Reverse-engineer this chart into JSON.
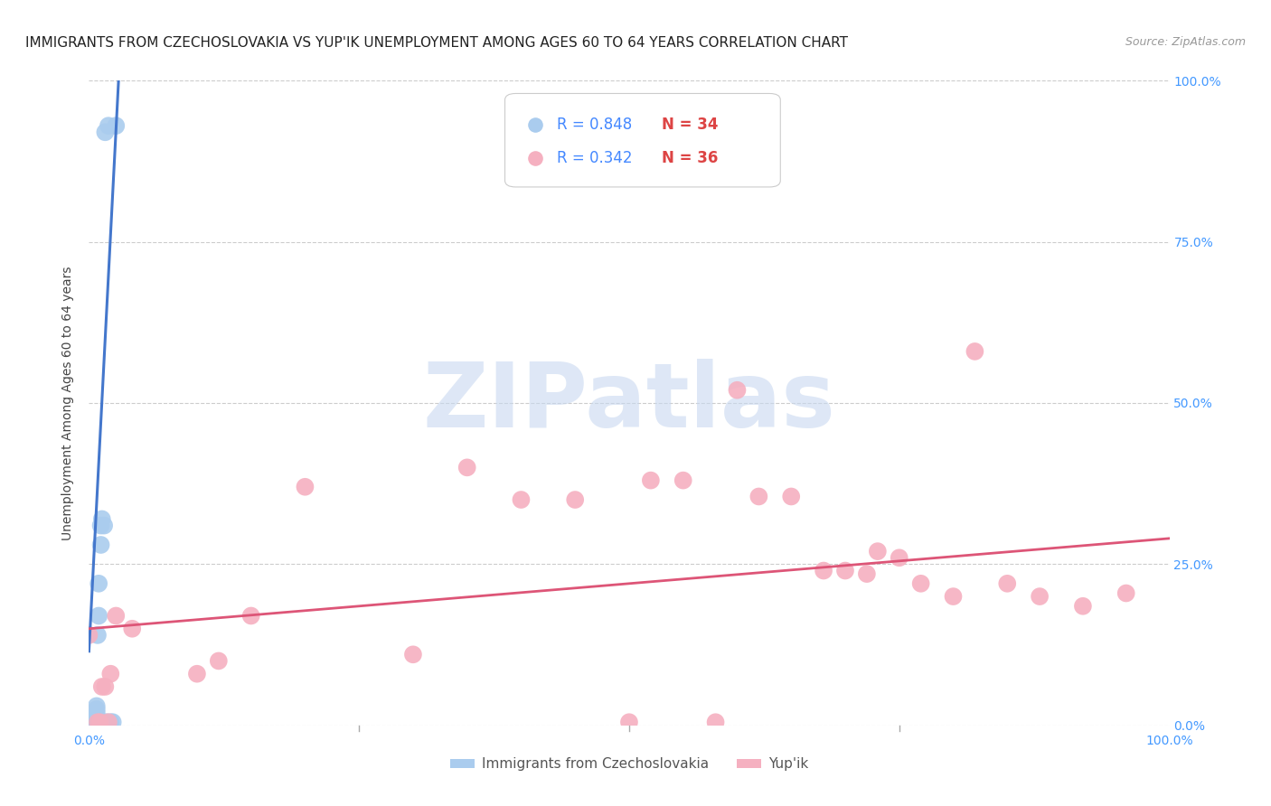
{
  "title": "IMMIGRANTS FROM CZECHOSLOVAKIA VS YUP'IK UNEMPLOYMENT AMONG AGES 60 TO 64 YEARS CORRELATION CHART",
  "source": "Source: ZipAtlas.com",
  "ylabel": "Unemployment Among Ages 60 to 64 years",
  "xlim": [
    0.0,
    1.0
  ],
  "ylim": [
    0.0,
    1.0
  ],
  "grid_color": "#cccccc",
  "background_color": "#ffffff",
  "series1": {
    "name": "Immigrants from Czechoslovakia",
    "R": "0.848",
    "N": "34",
    "color": "#aaccee",
    "line_color": "#4477cc",
    "x": [
      0.002,
      0.002,
      0.003,
      0.003,
      0.003,
      0.004,
      0.004,
      0.004,
      0.004,
      0.005,
      0.005,
      0.006,
      0.006,
      0.006,
      0.007,
      0.007,
      0.007,
      0.008,
      0.008,
      0.009,
      0.009,
      0.01,
      0.01,
      0.011,
      0.011,
      0.012,
      0.013,
      0.014,
      0.015,
      0.016,
      0.018,
      0.02,
      0.022,
      0.025
    ],
    "y": [
      0.005,
      0.005,
      0.005,
      0.005,
      0.005,
      0.005,
      0.005,
      0.01,
      0.01,
      0.005,
      0.005,
      0.005,
      0.005,
      0.005,
      0.02,
      0.025,
      0.03,
      0.005,
      0.14,
      0.17,
      0.22,
      0.005,
      0.005,
      0.28,
      0.31,
      0.32,
      0.005,
      0.31,
      0.92,
      0.005,
      0.93,
      0.005,
      0.005,
      0.93
    ],
    "trendline_x": [
      0.0,
      0.028
    ],
    "trendline_y": [
      0.115,
      1.02
    ]
  },
  "series2": {
    "name": "Yup'ik",
    "R": "0.342",
    "N": "36",
    "color": "#f5b0c0",
    "line_color": "#dd5577",
    "x": [
      0.0,
      0.008,
      0.01,
      0.012,
      0.015,
      0.018,
      0.02,
      0.025,
      0.04,
      0.1,
      0.12,
      0.15,
      0.2,
      0.3,
      0.35,
      0.4,
      0.45,
      0.5,
      0.52,
      0.55,
      0.58,
      0.6,
      0.62,
      0.65,
      0.68,
      0.7,
      0.72,
      0.73,
      0.75,
      0.77,
      0.8,
      0.82,
      0.85,
      0.88,
      0.92,
      0.96
    ],
    "y": [
      0.14,
      0.005,
      0.005,
      0.06,
      0.06,
      0.005,
      0.08,
      0.17,
      0.15,
      0.08,
      0.1,
      0.17,
      0.37,
      0.11,
      0.4,
      0.35,
      0.35,
      0.005,
      0.38,
      0.38,
      0.005,
      0.52,
      0.355,
      0.355,
      0.24,
      0.24,
      0.235,
      0.27,
      0.26,
      0.22,
      0.2,
      0.58,
      0.22,
      0.2,
      0.185,
      0.205
    ],
    "trendline_x": [
      0.0,
      1.0
    ],
    "trendline_y": [
      0.15,
      0.29
    ]
  },
  "legend": {
    "R1": "0.848",
    "N1": "34",
    "R2": "0.342",
    "N2": "36",
    "color1": "#4477cc",
    "color2": "#dd5577",
    "dot_color1": "#aaccee",
    "dot_color2": "#f5b0c0",
    "R_color": "#4488ff",
    "N_color": "#dd4444"
  },
  "watermark_text": "ZIPatlas",
  "watermark_color": "#c8d8f0",
  "title_fontsize": 11,
  "label_fontsize": 10,
  "tick_fontsize": 10,
  "legend_fontsize": 12
}
